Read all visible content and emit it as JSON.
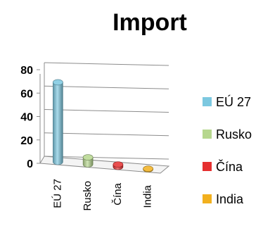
{
  "chart_data": {
    "type": "bar",
    "style": "3d-cylinder",
    "title": "Import",
    "xlabel": "",
    "ylabel": "",
    "categories": [
      "EÚ 27",
      "Rusko",
      "Čína",
      "India"
    ],
    "values": [
      68,
      6,
      2,
      0.5
    ],
    "colors": [
      "#7cc8e0",
      "#b6d78e",
      "#e53030",
      "#f2b01e"
    ],
    "ylim": [
      0,
      80
    ],
    "yticks": [
      "0",
      "20",
      "40",
      "60",
      "80"
    ],
    "grid": true,
    "legend": {
      "position": "right",
      "entries": [
        "EÚ 27",
        "Rusko",
        "Čína",
        "India"
      ]
    }
  }
}
